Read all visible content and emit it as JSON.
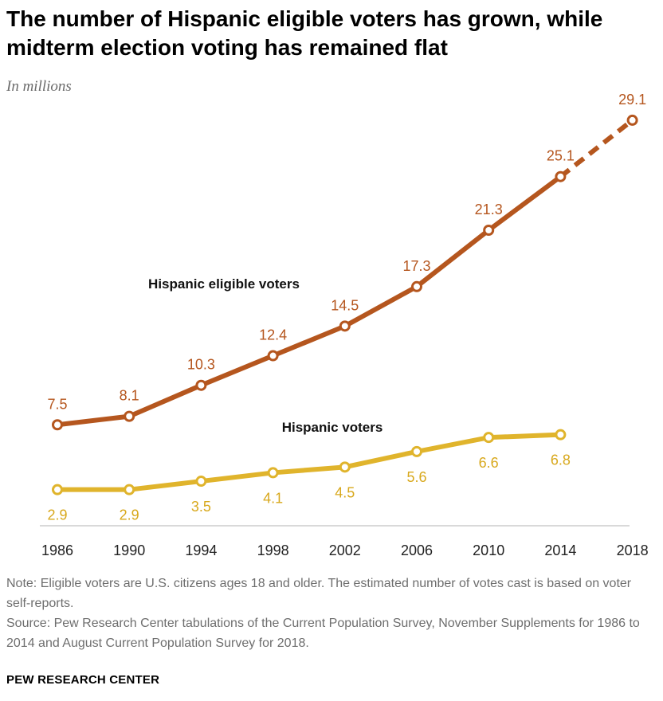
{
  "header": {
    "title": "The number of Hispanic eligible voters has grown, while midterm election voting has remained flat",
    "subtitle": "In millions"
  },
  "chart_data": {
    "type": "line",
    "categories": [
      "1986",
      "1990",
      "1994",
      "1998",
      "2002",
      "2006",
      "2010",
      "2014",
      "2018"
    ],
    "ylim": [
      0,
      30
    ],
    "series": [
      {
        "name": "Hispanic eligible voters",
        "color": "#b5561e",
        "values": [
          7.5,
          8.1,
          10.3,
          12.4,
          14.5,
          17.3,
          21.3,
          25.1,
          29.1
        ],
        "labels": [
          "7.5",
          "8.1",
          "10.3",
          "12.4",
          "14.5",
          "17.3",
          "21.3",
          "25.1",
          "29.1"
        ],
        "label_position": "above",
        "dashed_last_segment": true
      },
      {
        "name": "Hispanic voters",
        "color": "#e0b42c",
        "label_color": "#d8a81c",
        "values": [
          2.9,
          2.9,
          3.5,
          4.1,
          4.5,
          5.6,
          6.6,
          6.8,
          null
        ],
        "labels": [
          "2.9",
          "2.9",
          "3.5",
          "4.1",
          "4.5",
          "5.6",
          "6.6",
          "6.8",
          ""
        ],
        "label_position": "below"
      }
    ],
    "series_labels": [
      "Hispanic eligible voters",
      "Hispanic voters"
    ]
  },
  "footer": {
    "note": "Note: Eligible voters are U.S. citizens ages 18 and older. The estimated number of votes cast is based on voter self-reports.",
    "source": "Source: Pew Research Center tabulations of the Current Population Survey, November Supplements for 1986 to 2014 and August Current Population Survey for 2018.",
    "brand": "PEW RESEARCH CENTER"
  }
}
